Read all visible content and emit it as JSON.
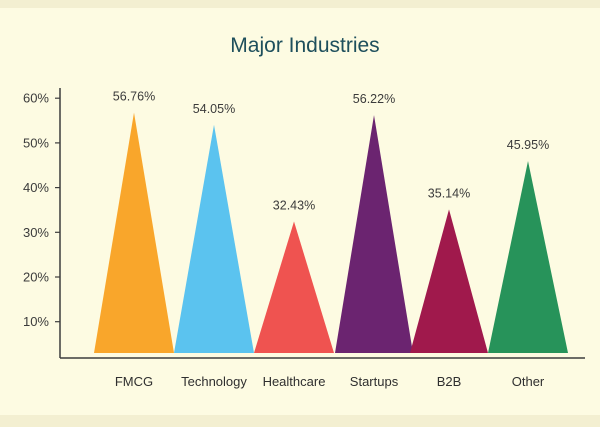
{
  "chart_data": {
    "type": "bar",
    "title": "Major Industries",
    "xlabel": "",
    "ylabel": "",
    "categories": [
      "FMCG",
      "Technology",
      "Healthcare",
      "Startups",
      "B2B",
      "Other"
    ],
    "values": [
      56.76,
      54.05,
      32.43,
      56.22,
      35.14,
      45.95
    ],
    "value_labels": [
      "56.76%",
      "54.05%",
      "32.43%",
      "56.22%",
      "35.14%",
      "45.95%"
    ],
    "colors": [
      "#f9a62b",
      "#5bc3ef",
      "#ef5350",
      "#6b2470",
      "#a0194c",
      "#27935a"
    ],
    "yticks": [
      10,
      20,
      30,
      40,
      50,
      60
    ],
    "ytick_labels": [
      "10%",
      "20%",
      "30%",
      "40%",
      "50%",
      "60%"
    ],
    "ylim": [
      0,
      60
    ],
    "grid": false,
    "legend": "none",
    "bar_shape": "triangle"
  }
}
